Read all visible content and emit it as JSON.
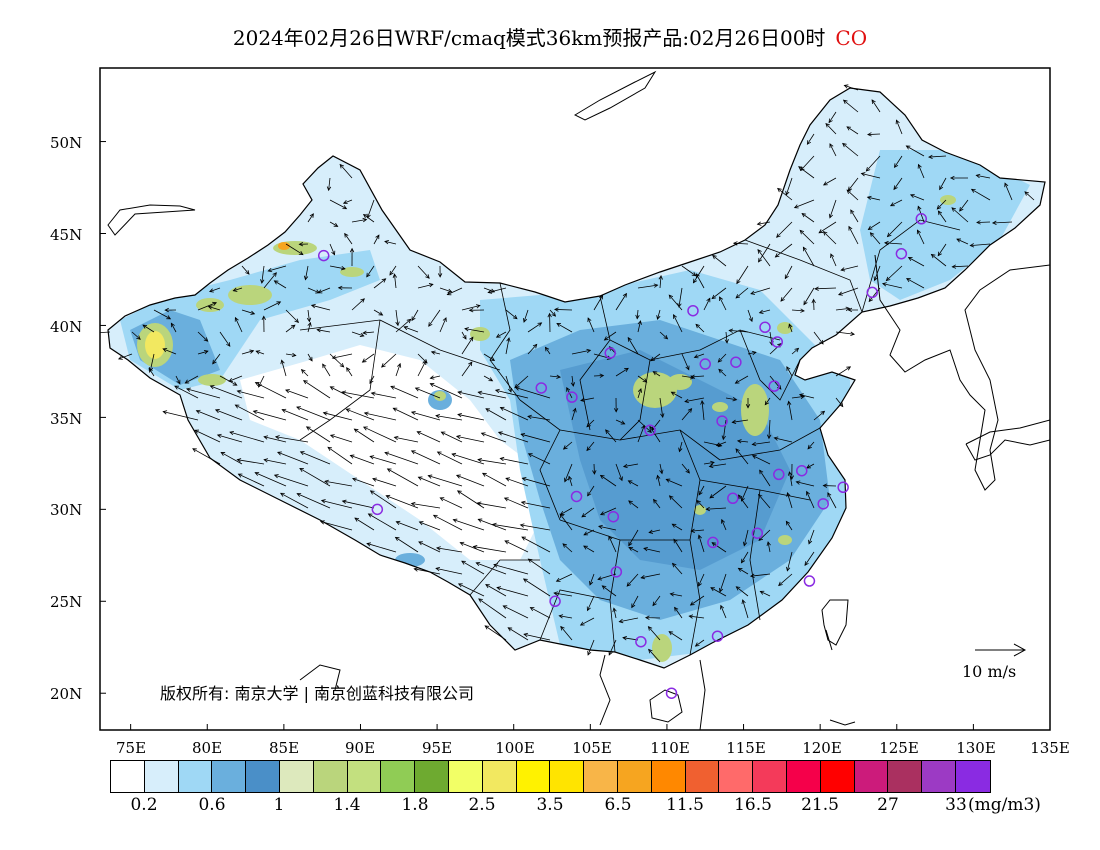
{
  "title": {
    "text": "2024年02月26日WRF/cmaq模式36km预报产品:02月26日00时",
    "species": "CO"
  },
  "colors": {
    "species": "#e01010",
    "station_marker": "#8a2be2",
    "border": "#000000"
  },
  "map": {
    "lon_range": [
      73,
      135
    ],
    "lat_range": [
      18,
      54
    ],
    "y_ticks": [
      "50N",
      "45N",
      "40N",
      "35N",
      "30N",
      "25N",
      "20N"
    ],
    "x_ticks": [
      "75E",
      "80E",
      "85E",
      "90E",
      "95E",
      "100E",
      "105E",
      "110E",
      "115E",
      "120E",
      "125E",
      "130E",
      "135E"
    ],
    "copyright": "版权所有: 南京大学 | 南京创蓝科技有限公司",
    "wind_scale_label": "10 m/s"
  },
  "colorbar": {
    "colors": [
      "#ffffff",
      "#d7eefb",
      "#9fd8f5",
      "#6aafdd",
      "#4a8fc8",
      "#dde9bd",
      "#bad57c",
      "#c3e07f",
      "#90cc55",
      "#6eaa30",
      "#f2ff66",
      "#f2e860",
      "#fff200",
      "#ffe400",
      "#f8b548",
      "#f6a520",
      "#ff8800",
      "#f06030",
      "#ff6a6a",
      "#f43a5a",
      "#f5004a",
      "#ff0000",
      "#cc1b7b",
      "#aa3060",
      "#9c3ac4",
      "#8a2be2"
    ],
    "labels": [
      "0.2",
      "0.6",
      "1",
      "1.4",
      "1.8",
      "2.5",
      "3.5",
      "6.5",
      "11.5",
      "16.5",
      "21.5",
      "27",
      "33"
    ],
    "unit": "(mg/m3)"
  },
  "stations": [
    {
      "lon": 87.6,
      "lat": 43.8
    },
    {
      "lon": 126.6,
      "lat": 45.8
    },
    {
      "lon": 125.3,
      "lat": 43.9
    },
    {
      "lon": 123.4,
      "lat": 41.8
    },
    {
      "lon": 111.7,
      "lat": 40.8
    },
    {
      "lon": 116.4,
      "lat": 39.9
    },
    {
      "lon": 117.2,
      "lat": 39.1
    },
    {
      "lon": 106.3,
      "lat": 38.5
    },
    {
      "lon": 112.5,
      "lat": 37.9
    },
    {
      "lon": 114.5,
      "lat": 38.0
    },
    {
      "lon": 117.0,
      "lat": 36.7
    },
    {
      "lon": 101.8,
      "lat": 36.6
    },
    {
      "lon": 103.8,
      "lat": 36.1
    },
    {
      "lon": 113.6,
      "lat": 34.8
    },
    {
      "lon": 108.9,
      "lat": 34.3
    },
    {
      "lon": 117.3,
      "lat": 31.9
    },
    {
      "lon": 118.8,
      "lat": 32.1
    },
    {
      "lon": 121.5,
      "lat": 31.2
    },
    {
      "lon": 114.3,
      "lat": 30.6
    },
    {
      "lon": 120.2,
      "lat": 30.3
    },
    {
      "lon": 104.1,
      "lat": 30.7
    },
    {
      "lon": 106.5,
      "lat": 29.6
    },
    {
      "lon": 91.1,
      "lat": 30.0
    },
    {
      "lon": 115.9,
      "lat": 28.7
    },
    {
      "lon": 113.0,
      "lat": 28.2
    },
    {
      "lon": 106.7,
      "lat": 26.6
    },
    {
      "lon": 119.3,
      "lat": 26.1
    },
    {
      "lon": 102.7,
      "lat": 25.0
    },
    {
      "lon": 108.3,
      "lat": 22.8
    },
    {
      "lon": 113.3,
      "lat": 23.1
    },
    {
      "lon": 110.3,
      "lat": 20.0
    }
  ]
}
